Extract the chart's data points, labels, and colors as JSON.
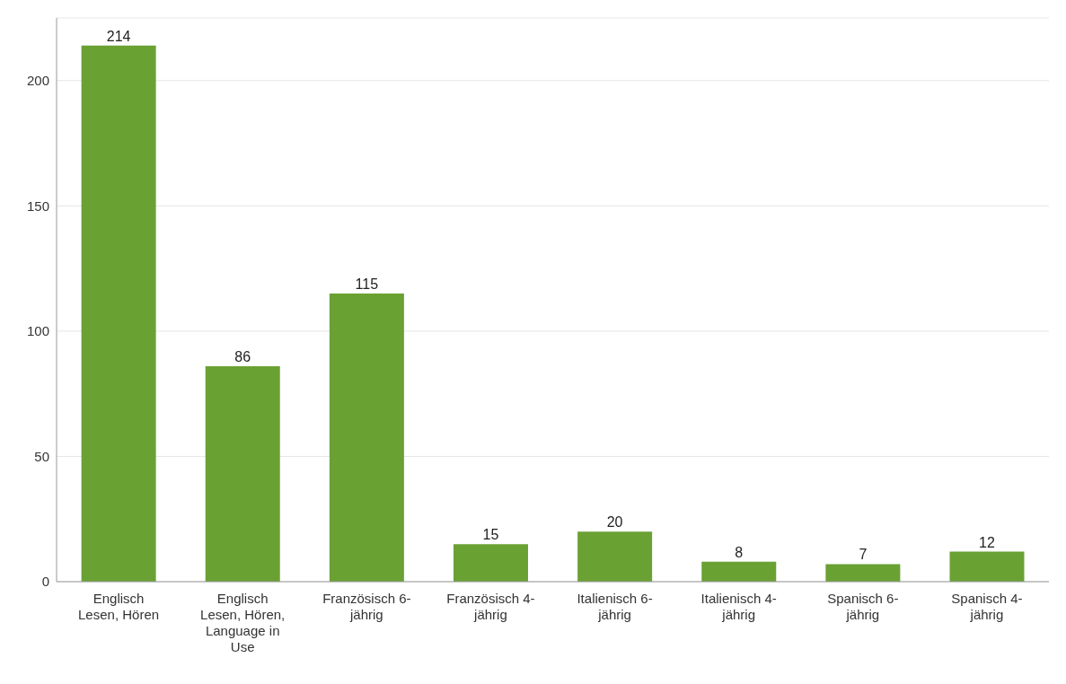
{
  "chart_data": {
    "type": "bar",
    "categories": [
      "Englisch Lesen, Hören",
      "Englisch Lesen, Hören, Language in Use",
      "Französisch 6-jährig",
      "Französisch 4-jährig",
      "Italienisch 6-jährig",
      "Italienisch 4-jährig",
      "Spanisch 6-jährig",
      "Spanisch 4-jährig"
    ],
    "values": [
      214,
      86,
      115,
      15,
      20,
      8,
      7,
      12
    ],
    "color": "#6aa133",
    "ylim": [
      0,
      225
    ],
    "yticks": [
      0,
      50,
      100,
      150,
      200
    ],
    "grid": "y",
    "data_labels": true
  }
}
